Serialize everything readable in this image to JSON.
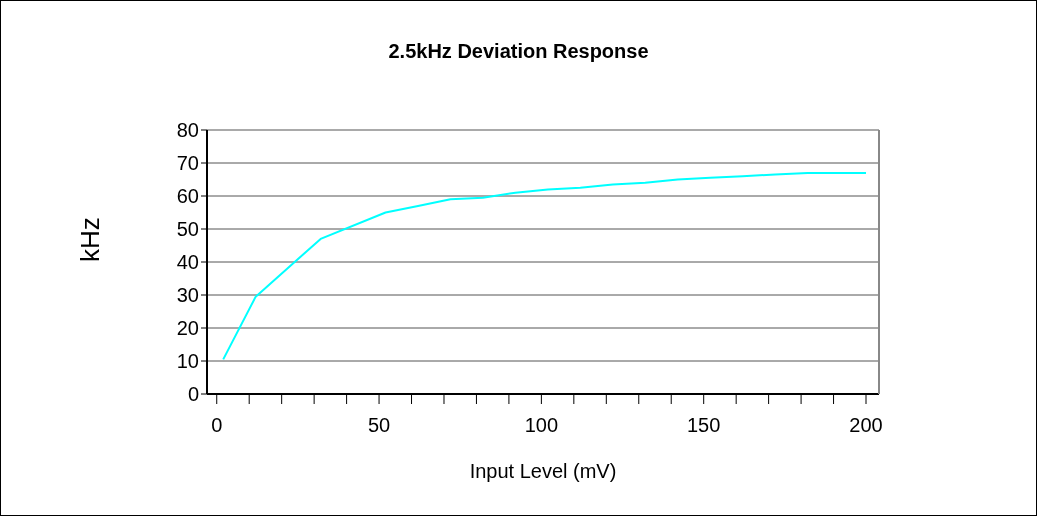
{
  "chart_data": {
    "type": "line",
    "title": "2.5kHz Deviation Response",
    "xlabel": "Input Level (mV)",
    "ylabel": "kHz",
    "x": [
      2,
      12,
      32,
      52,
      62,
      72,
      82,
      92,
      102,
      112,
      122,
      132,
      142,
      152,
      162,
      172,
      182,
      192,
      200
    ],
    "series": [
      {
        "color": "#00ffff",
        "values": [
          10.5,
          29.5,
          47,
          55,
          57,
          59,
          59.5,
          61,
          62,
          62.5,
          63.5,
          64,
          65,
          65.5,
          66,
          66.5,
          67,
          67,
          67
        ]
      }
    ],
    "xlim": [
      -3,
      204
    ],
    "xticks": [
      0,
      {
        "value": 10,
        "label": null
      },
      {
        "value": 20,
        "label": null
      },
      {
        "value": 30,
        "label": null
      },
      {
        "value": 40,
        "label": null
      },
      50,
      {
        "value": 60,
        "label": null
      },
      {
        "value": 70,
        "label": null
      },
      {
        "value": 80,
        "label": null
      },
      {
        "value": 90,
        "label": null
      },
      100,
      {
        "value": 110,
        "label": null
      },
      {
        "value": 120,
        "label": null
      },
      {
        "value": 130,
        "label": null
      },
      {
        "value": 140,
        "label": null
      },
      150,
      {
        "value": 160,
        "label": null
      },
      {
        "value": 170,
        "label": null
      },
      {
        "value": 180,
        "label": null
      },
      {
        "value": 190,
        "label": null
      },
      200
    ],
    "ylim": [
      0,
      80
    ],
    "yticks": [
      0,
      10,
      20,
      30,
      40,
      50,
      60,
      70,
      80
    ],
    "grid": "y",
    "marker": "none",
    "line_style": "solid"
  }
}
